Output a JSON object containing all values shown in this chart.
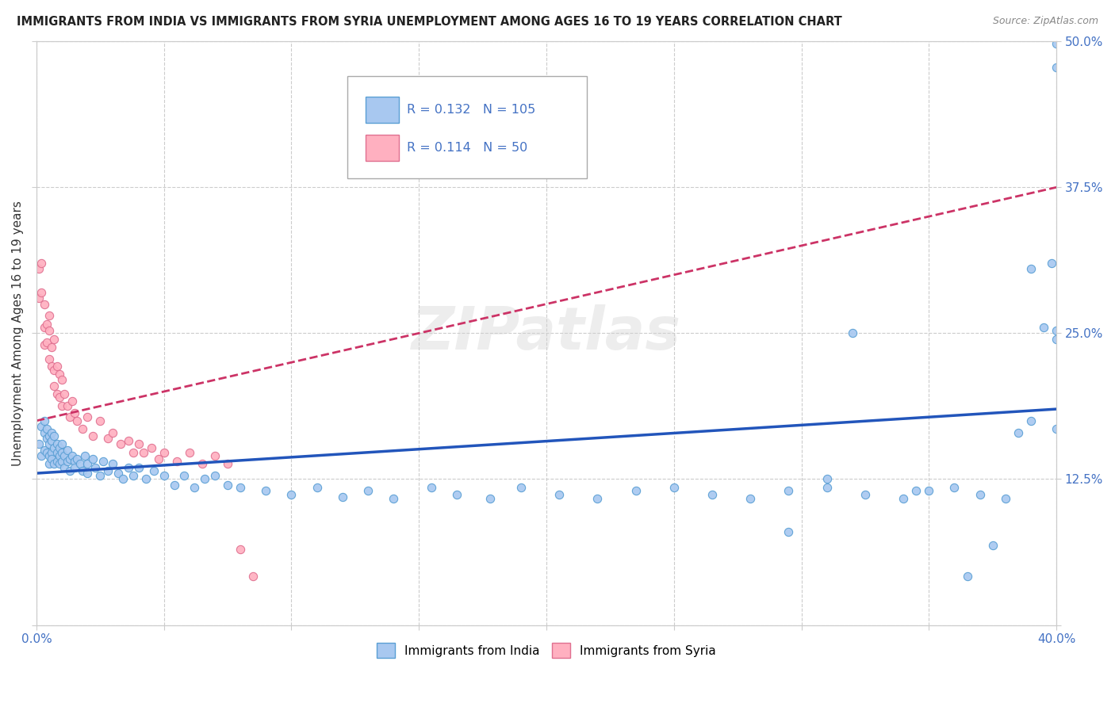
{
  "title": "IMMIGRANTS FROM INDIA VS IMMIGRANTS FROM SYRIA UNEMPLOYMENT AMONG AGES 16 TO 19 YEARS CORRELATION CHART",
  "source": "Source: ZipAtlas.com",
  "ylabel": "Unemployment Among Ages 16 to 19 years",
  "xlim": [
    0,
    0.4
  ],
  "ylim": [
    0,
    0.5
  ],
  "xticks": [
    0.0,
    0.05,
    0.1,
    0.15,
    0.2,
    0.25,
    0.3,
    0.35,
    0.4
  ],
  "yticks": [
    0.0,
    0.125,
    0.25,
    0.375,
    0.5
  ],
  "ytick_labels": [
    "",
    "12.5%",
    "25.0%",
    "37.5%",
    "50.0%"
  ],
  "india_color": "#a8c8f0",
  "india_edge_color": "#5a9fd4",
  "syria_color": "#ffb0c0",
  "syria_edge_color": "#e07090",
  "trend_india_color": "#2255bb",
  "trend_syria_color": "#cc3366",
  "R_india": 0.132,
  "N_india": 105,
  "R_syria": 0.114,
  "N_syria": 50,
  "india_trend_x0": 0.0,
  "india_trend_y0": 0.13,
  "india_trend_x1": 0.4,
  "india_trend_y1": 0.185,
  "syria_trend_x0": 0.0,
  "syria_trend_y0": 0.175,
  "syria_trend_x1": 0.4,
  "syria_trend_y1": 0.375,
  "background_color": "#ffffff",
  "grid_color": "#cccccc",
  "watermark": "ZIPatlas",
  "india_x": [
    0.001,
    0.002,
    0.002,
    0.003,
    0.003,
    0.003,
    0.004,
    0.004,
    0.004,
    0.005,
    0.005,
    0.005,
    0.005,
    0.006,
    0.006,
    0.006,
    0.006,
    0.007,
    0.007,
    0.007,
    0.008,
    0.008,
    0.008,
    0.009,
    0.009,
    0.009,
    0.01,
    0.01,
    0.01,
    0.011,
    0.011,
    0.012,
    0.012,
    0.013,
    0.013,
    0.014,
    0.015,
    0.015,
    0.016,
    0.017,
    0.018,
    0.019,
    0.02,
    0.02,
    0.022,
    0.023,
    0.025,
    0.026,
    0.028,
    0.03,
    0.032,
    0.034,
    0.036,
    0.038,
    0.04,
    0.043,
    0.046,
    0.05,
    0.054,
    0.058,
    0.062,
    0.066,
    0.07,
    0.075,
    0.08,
    0.09,
    0.1,
    0.11,
    0.12,
    0.13,
    0.14,
    0.155,
    0.165,
    0.178,
    0.19,
    0.205,
    0.22,
    0.235,
    0.25,
    0.265,
    0.28,
    0.295,
    0.31,
    0.325,
    0.34,
    0.35,
    0.36,
    0.37,
    0.38,
    0.39,
    0.395,
    0.398,
    0.4,
    0.4,
    0.4,
    0.4,
    0.4,
    0.39,
    0.385,
    0.375,
    0.365,
    0.345,
    0.32,
    0.31,
    0.295
  ],
  "india_y": [
    0.155,
    0.17,
    0.145,
    0.165,
    0.15,
    0.175,
    0.16,
    0.148,
    0.168,
    0.155,
    0.145,
    0.162,
    0.138,
    0.158,
    0.148,
    0.165,
    0.142,
    0.152,
    0.138,
    0.162,
    0.148,
    0.14,
    0.155,
    0.145,
    0.138,
    0.152,
    0.148,
    0.14,
    0.155,
    0.145,
    0.135,
    0.15,
    0.14,
    0.142,
    0.132,
    0.145,
    0.14,
    0.135,
    0.142,
    0.138,
    0.132,
    0.145,
    0.138,
    0.13,
    0.142,
    0.135,
    0.128,
    0.14,
    0.132,
    0.138,
    0.13,
    0.125,
    0.135,
    0.128,
    0.135,
    0.125,
    0.132,
    0.128,
    0.12,
    0.128,
    0.118,
    0.125,
    0.128,
    0.12,
    0.118,
    0.115,
    0.112,
    0.118,
    0.11,
    0.115,
    0.108,
    0.118,
    0.112,
    0.108,
    0.118,
    0.112,
    0.108,
    0.115,
    0.118,
    0.112,
    0.108,
    0.115,
    0.118,
    0.112,
    0.108,
    0.115,
    0.118,
    0.112,
    0.108,
    0.175,
    0.255,
    0.31,
    0.498,
    0.478,
    0.245,
    0.252,
    0.168,
    0.305,
    0.165,
    0.068,
    0.042,
    0.115,
    0.25,
    0.125,
    0.08
  ],
  "syria_x": [
    0.001,
    0.001,
    0.002,
    0.002,
    0.003,
    0.003,
    0.003,
    0.004,
    0.004,
    0.005,
    0.005,
    0.005,
    0.006,
    0.006,
    0.007,
    0.007,
    0.007,
    0.008,
    0.008,
    0.009,
    0.009,
    0.01,
    0.01,
    0.011,
    0.012,
    0.013,
    0.014,
    0.015,
    0.016,
    0.018,
    0.02,
    0.022,
    0.025,
    0.028,
    0.03,
    0.033,
    0.036,
    0.038,
    0.04,
    0.042,
    0.045,
    0.048,
    0.05,
    0.055,
    0.06,
    0.065,
    0.07,
    0.075,
    0.08,
    0.085
  ],
  "syria_y": [
    0.28,
    0.305,
    0.31,
    0.285,
    0.275,
    0.255,
    0.24,
    0.258,
    0.242,
    0.252,
    0.228,
    0.265,
    0.222,
    0.238,
    0.218,
    0.245,
    0.205,
    0.222,
    0.198,
    0.215,
    0.195,
    0.21,
    0.188,
    0.198,
    0.188,
    0.178,
    0.192,
    0.182,
    0.175,
    0.168,
    0.178,
    0.162,
    0.175,
    0.16,
    0.165,
    0.155,
    0.158,
    0.148,
    0.155,
    0.148,
    0.152,
    0.142,
    0.148,
    0.14,
    0.148,
    0.138,
    0.145,
    0.138,
    0.065,
    0.042
  ]
}
